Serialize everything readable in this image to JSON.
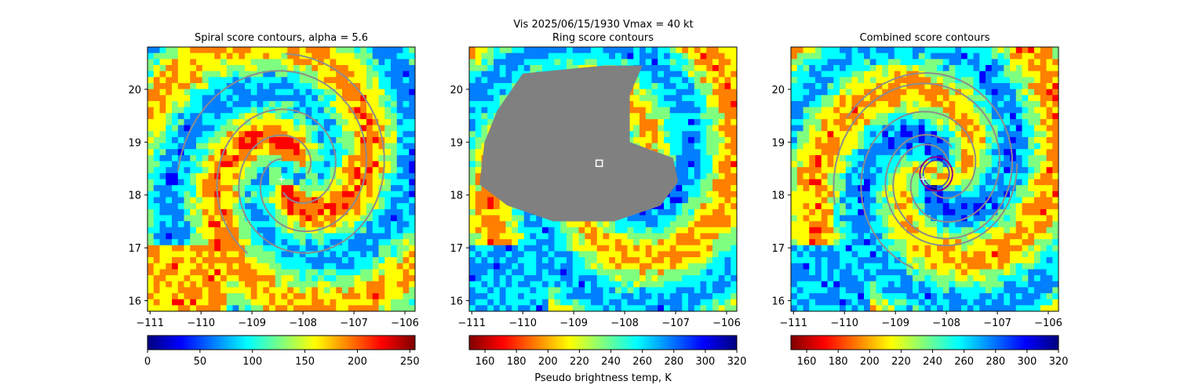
{
  "figure": {
    "suptitle_line1": "Vis  2025/06/15/1930    Vmax = 40 kt",
    "colors": {
      "jet": [
        "#00007f",
        "#0000ff",
        "#007fff",
        "#00ffff",
        "#7fff7f",
        "#ffff00",
        "#ff7f00",
        "#ff0000",
        "#7f0000"
      ],
      "contour": "#8c8c8c",
      "mask": "#808080",
      "ring": "#8b008b"
    }
  },
  "chart_data": [
    {
      "type": "heatmap",
      "title": "Spiral score contours, alpha =  5.6",
      "xlim": [
        -111.05,
        -105.8
      ],
      "ylim": [
        15.8,
        20.8
      ],
      "x_ticks": [
        -111,
        -110,
        -109,
        -108,
        -107,
        -106
      ],
      "x_tick_labels": [
        "−111",
        "−110",
        "−109",
        "−108",
        "−107",
        "−106"
      ],
      "y_ticks": [
        16,
        17,
        18,
        19,
        20
      ],
      "y_tick_labels": [
        "16",
        "17",
        "18",
        "19",
        "20"
      ],
      "colormap": "jet",
      "colorbar": {
        "vmin": 0,
        "vmax": 255,
        "ticks": [
          0,
          50,
          100,
          150,
          200,
          250
        ],
        "tick_labels": [
          "0",
          "50",
          "100",
          "150",
          "200",
          "250"
        ],
        "reversed": false,
        "label": ""
      },
      "center": {
        "x": -108.2,
        "y": 18.4
      },
      "marker": {
        "type": "plus",
        "x": -108.42,
        "y": 18.3
      },
      "grid": false
    },
    {
      "type": "heatmap",
      "title": "Ring score contours",
      "xlim": [
        -111.05,
        -105.8
      ],
      "ylim": [
        15.8,
        20.8
      ],
      "x_ticks": [
        -111,
        -110,
        -109,
        -108,
        -107,
        -106
      ],
      "x_tick_labels": [
        "−111",
        "−110",
        "−109",
        "−108",
        "−107",
        "−106"
      ],
      "y_ticks": [
        16,
        17,
        18,
        19,
        20
      ],
      "y_tick_labels": [
        "16",
        "17",
        "18",
        "19",
        "20"
      ],
      "colormap": "jet_r",
      "colorbar": {
        "vmin": 150,
        "vmax": 320,
        "ticks": [
          160,
          180,
          200,
          220,
          240,
          260,
          280,
          300,
          320
        ],
        "tick_labels": [
          "160",
          "180",
          "200",
          "220",
          "240",
          "260",
          "280",
          "300",
          "320"
        ],
        "reversed": true,
        "label": "Pseudo brightness temp, K"
      },
      "center": {
        "x": -108.2,
        "y": 18.4
      },
      "marker": {
        "type": "square",
        "x": -108.5,
        "y": 18.6
      },
      "grid": false
    },
    {
      "type": "heatmap",
      "title": "Combined score contours",
      "xlim": [
        -111.05,
        -105.8
      ],
      "ylim": [
        15.8,
        20.8
      ],
      "x_ticks": [
        -111,
        -110,
        -109,
        -108,
        -107,
        -106
      ],
      "x_tick_labels": [
        "−111",
        "−110",
        "−109",
        "−108",
        "−107",
        "−106"
      ],
      "y_ticks": [
        16,
        17,
        18,
        19,
        20
      ],
      "y_tick_labels": [
        "16",
        "17",
        "18",
        "19",
        "20"
      ],
      "colormap": "jet_r",
      "colorbar": {
        "vmin": 150,
        "vmax": 320,
        "ticks": [
          160,
          180,
          200,
          220,
          240,
          260,
          280,
          300,
          320
        ],
        "tick_labels": [
          "160",
          "180",
          "200",
          "220",
          "240",
          "260",
          "280",
          "300",
          "320"
        ],
        "reversed": true,
        "label": ""
      },
      "center": {
        "x": -108.2,
        "y": 18.4
      },
      "marker": {
        "type": "plus",
        "x": -108.45,
        "y": 18.3
      },
      "ring": {
        "x": -108.2,
        "y": 18.4,
        "radius_deg": 0.32
      },
      "grid": false
    }
  ]
}
